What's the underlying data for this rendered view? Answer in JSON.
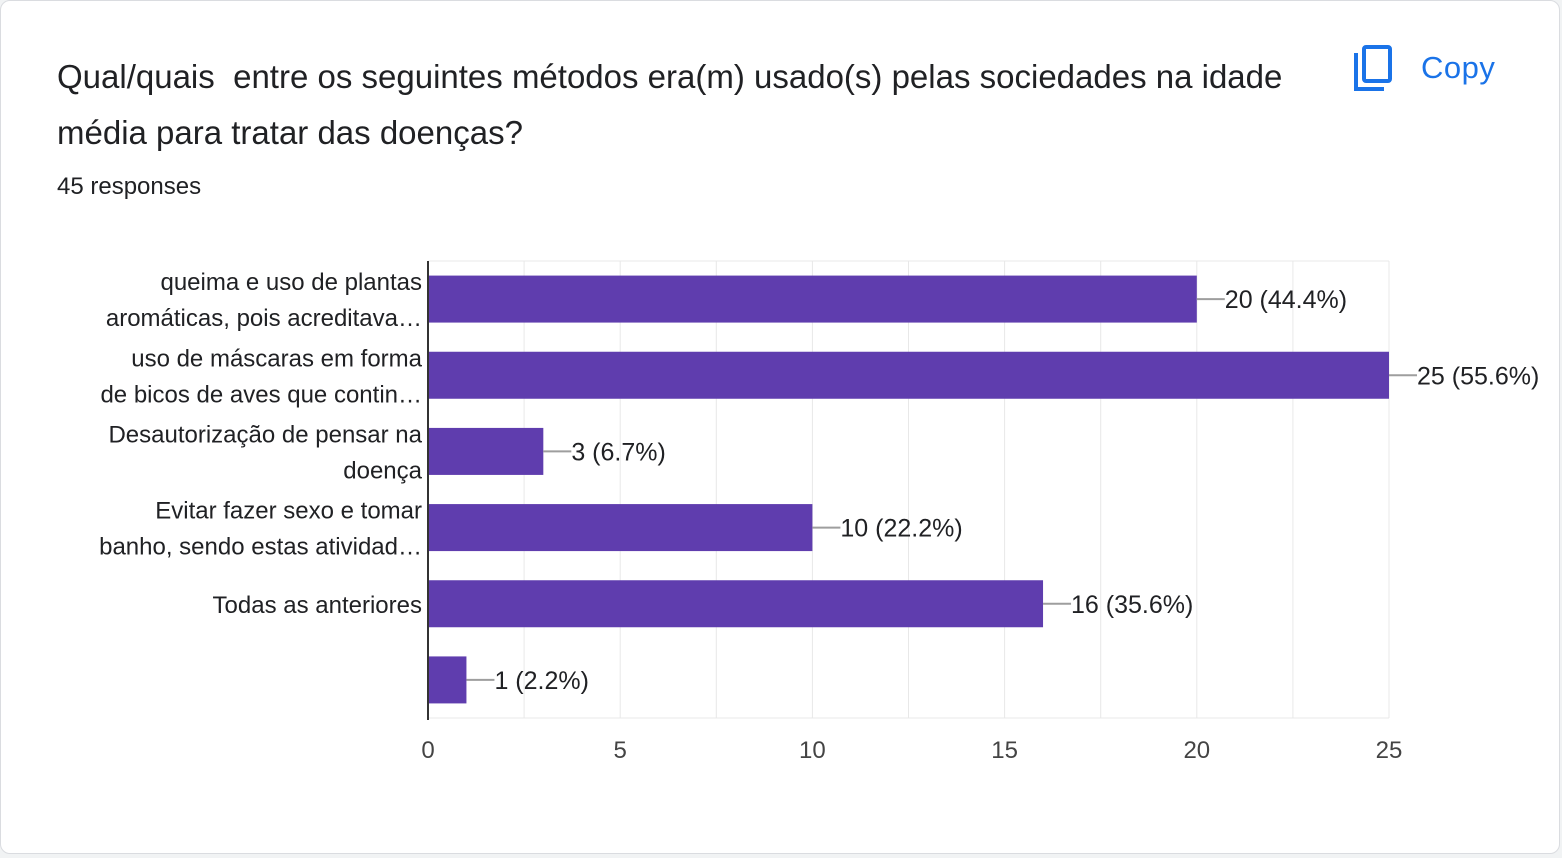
{
  "question": "Qual/quais  entre os seguintes métodos era(m) usado(s) pelas sociedades na idade média para tratar das doenças?",
  "responses_count": "45 responses",
  "copy_label": "Copy",
  "colors": {
    "bar": "#5f3dae",
    "link": "#1a73e8",
    "grid": "#e8e8e8",
    "axis": "#333333"
  },
  "chart_data": {
    "type": "bar",
    "orientation": "horizontal",
    "categories": [
      [
        "queima e uso de plantas",
        "aromáticas, pois acreditava…"
      ],
      [
        "uso de máscaras em forma",
        "de bicos de aves que contin…"
      ],
      [
        "Desautorização de pensar na",
        "doença"
      ],
      [
        "Evitar fazer sexo e tomar",
        "banho, sendo estas atividad…"
      ],
      [
        "Todas as anteriores"
      ],
      []
    ],
    "values": [
      20,
      25,
      3,
      10,
      16,
      1
    ],
    "data_labels": [
      "20 (44.4%)",
      "25 (55.6%)",
      "3 (6.7%)",
      "10 (22.2%)",
      "16 (35.6%)",
      "1 (2.2%)"
    ],
    "xlim": [
      0,
      25
    ],
    "xticks": [
      0,
      5,
      10,
      15,
      20,
      25
    ],
    "grid": true,
    "title": "",
    "xlabel": "",
    "ylabel": ""
  }
}
